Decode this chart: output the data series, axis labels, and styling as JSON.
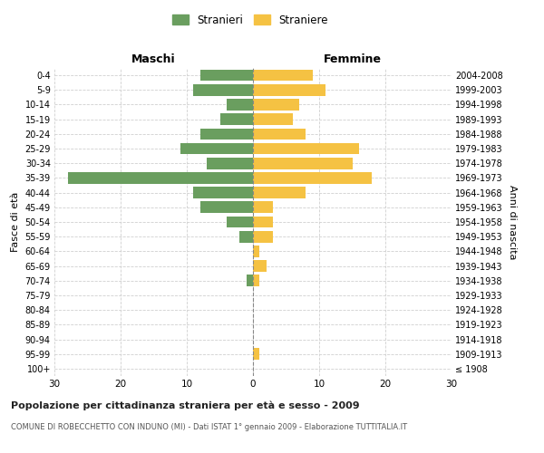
{
  "age_groups": [
    "100+",
    "95-99",
    "90-94",
    "85-89",
    "80-84",
    "75-79",
    "70-74",
    "65-69",
    "60-64",
    "55-59",
    "50-54",
    "45-49",
    "40-44",
    "35-39",
    "30-34",
    "25-29",
    "20-24",
    "15-19",
    "10-14",
    "5-9",
    "0-4"
  ],
  "birth_years": [
    "≤ 1908",
    "1909-1913",
    "1914-1918",
    "1919-1923",
    "1924-1928",
    "1929-1933",
    "1934-1938",
    "1939-1943",
    "1944-1948",
    "1949-1953",
    "1954-1958",
    "1959-1963",
    "1964-1968",
    "1969-1973",
    "1974-1978",
    "1979-1983",
    "1984-1988",
    "1989-1993",
    "1994-1998",
    "1999-2003",
    "2004-2008"
  ],
  "males": [
    0,
    0,
    0,
    0,
    0,
    0,
    1,
    0,
    0,
    2,
    4,
    8,
    9,
    28,
    7,
    11,
    8,
    5,
    4,
    9,
    8
  ],
  "females": [
    0,
    1,
    0,
    0,
    0,
    0,
    1,
    2,
    1,
    3,
    3,
    3,
    8,
    18,
    15,
    16,
    8,
    6,
    7,
    11,
    9
  ],
  "male_color": "#6a9e5f",
  "female_color": "#f5c243",
  "title": "Popolazione per cittadinanza straniera per età e sesso - 2009",
  "subtitle": "COMUNE DI ROBECCHETTO CON INDUNO (MI) - Dati ISTAT 1° gennaio 2009 - Elaborazione TUTTITALIA.IT",
  "xlabel_left": "Maschi",
  "xlabel_right": "Femmine",
  "ylabel_left": "Fasce di età",
  "ylabel_right": "Anni di nascita",
  "legend_male": "Stranieri",
  "legend_female": "Straniere",
  "xlim": 30,
  "background_color": "#ffffff",
  "grid_color": "#d0d0d0"
}
